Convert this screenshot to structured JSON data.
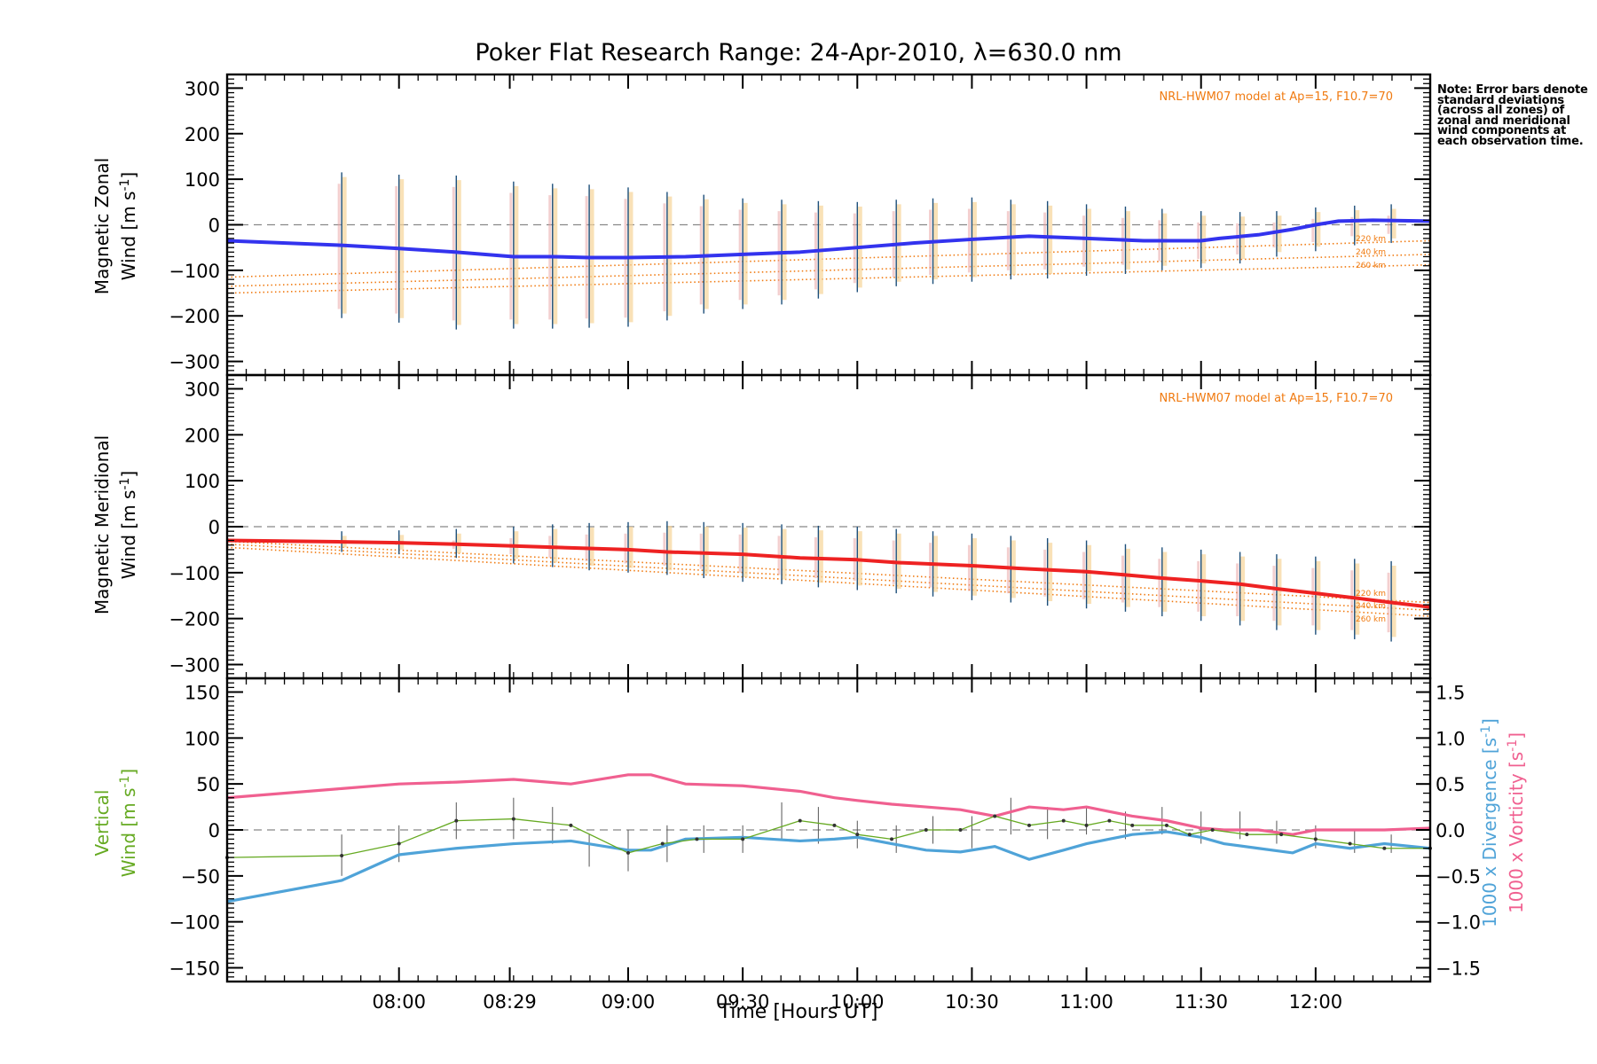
{
  "title": "Poker Flat Research Range: 24-Apr-2010, λ=630.0 nm",
  "note": "Note: Error bars denote standard deviations (across all zones) of zonal and meridional wind components at each observation time.",
  "x_axis": {
    "label": "Time [Hours UT]",
    "ticks": [
      "08:00",
      "08:29",
      "09:00",
      "09:30",
      "10:00",
      "10:30",
      "11:00",
      "11:30",
      "12:00"
    ]
  },
  "colors": {
    "zonal": "#3333ee",
    "meridional": "#ee2222",
    "vertical": "#66aa22",
    "divergence": "#4fa3d8",
    "vorticity": "#f06090",
    "model": "#f07a10",
    "error_bar": "#1d4f7a",
    "error_yellow": "#f7d59a",
    "error_pink": "#e8a0a0",
    "grid_zero": "#888888"
  },
  "chart_data": [
    {
      "type": "line",
      "id": "zonal",
      "ylabel_line1": "Magnetic Zonal",
      "ylabel_line2": "Wind [m s",
      "ylabel_sup": "-1",
      "ylabel_end": "]",
      "ylim": [
        -330,
        330
      ],
      "yticks": [
        "300",
        "200",
        "100",
        "0",
        "−100",
        "−200",
        "−300"
      ],
      "model_label": "NRL-HWM07 model at Ap=15, F10.7=70",
      "model_tags": [
        "220 km",
        "240 km",
        "260 km"
      ],
      "model_lines": [
        {
          "name": "220 km",
          "x": [
            7.25,
            12.5
          ],
          "y": [
            -115,
            -35
          ]
        },
        {
          "name": "240 km",
          "x": [
            7.25,
            12.5
          ],
          "y": [
            -135,
            -65
          ]
        },
        {
          "name": "260 km",
          "x": [
            7.25,
            12.5
          ],
          "y": [
            -150,
            -88
          ]
        }
      ],
      "series": [
        {
          "name": "Magnetic Zonal Wind",
          "x": [
            7.25,
            7.75,
            8.0,
            8.25,
            8.5,
            8.67,
            8.83,
            9.0,
            9.25,
            9.5,
            9.75,
            10.0,
            10.25,
            10.5,
            10.75,
            11.0,
            11.25,
            11.5,
            11.58,
            11.75,
            11.9,
            12.0,
            12.1,
            12.25,
            12.5
          ],
          "y": [
            -35,
            -45,
            -52,
            -60,
            -70,
            -70,
            -72,
            -72,
            -70,
            -65,
            -60,
            -50,
            -40,
            -32,
            -25,
            -30,
            -35,
            -35,
            -30,
            -22,
            -10,
            0,
            8,
            10,
            8
          ]
        }
      ],
      "error_bars": {
        "x": [
          7.75,
          8.0,
          8.25,
          8.5,
          8.67,
          8.83,
          9.0,
          9.17,
          9.33,
          9.5,
          9.67,
          9.83,
          10.0,
          10.17,
          10.33,
          10.5,
          10.67,
          10.83,
          11.0,
          11.17,
          11.33,
          11.5,
          11.67,
          11.83,
          12.0,
          12.17,
          12.33
        ],
        "lo": [
          -205,
          -215,
          -230,
          -228,
          -228,
          -226,
          -224,
          -210,
          -195,
          -185,
          -175,
          -162,
          -148,
          -135,
          -130,
          -125,
          -120,
          -118,
          -112,
          -108,
          -100,
          -95,
          -85,
          -70,
          -58,
          -45,
          -40
        ],
        "hi": [
          115,
          110,
          108,
          95,
          90,
          88,
          82,
          72,
          66,
          58,
          55,
          52,
          50,
          55,
          58,
          60,
          55,
          52,
          45,
          40,
          35,
          30,
          28,
          30,
          38,
          42,
          45
        ]
      }
    },
    {
      "type": "line",
      "id": "meridional",
      "ylabel_line1": "Magnetic Meridional",
      "ylabel_line2": "Wind [m s",
      "ylabel_sup": "-1",
      "ylabel_end": "]",
      "ylim": [
        -330,
        330
      ],
      "yticks": [
        "300",
        "200",
        "100",
        "0",
        "−100",
        "−200",
        "−300"
      ],
      "model_label": "NRL-HWM07 model at Ap=15, F10.7=70",
      "model_tags": [
        "220 km",
        "240 km",
        "260 km"
      ],
      "model_lines": [
        {
          "name": "220 km",
          "x": [
            7.25,
            12.5
          ],
          "y": [
            -32,
            -165
          ]
        },
        {
          "name": "240 km",
          "x": [
            7.25,
            12.5
          ],
          "y": [
            -38,
            -182
          ]
        },
        {
          "name": "260 km",
          "x": [
            7.25,
            12.5
          ],
          "y": [
            -45,
            -195
          ]
        }
      ],
      "series": [
        {
          "name": "Magnetic Meridional Wind",
          "x": [
            7.25,
            7.75,
            8.0,
            8.25,
            8.5,
            8.75,
            9.0,
            9.17,
            9.5,
            9.75,
            10.0,
            10.17,
            10.5,
            10.75,
            11.0,
            11.17,
            11.33,
            11.5,
            11.67,
            11.83,
            12.0,
            12.17,
            12.33,
            12.5
          ],
          "y": [
            -30,
            -33,
            -35,
            -38,
            -42,
            -46,
            -50,
            -55,
            -60,
            -68,
            -72,
            -78,
            -85,
            -92,
            -98,
            -105,
            -112,
            -118,
            -125,
            -135,
            -145,
            -155,
            -165,
            -175
          ]
        }
      ],
      "error_bars": {
        "x": [
          7.75,
          8.0,
          8.25,
          8.5,
          8.67,
          8.83,
          9.0,
          9.17,
          9.33,
          9.5,
          9.67,
          9.83,
          10.0,
          10.17,
          10.33,
          10.5,
          10.67,
          10.83,
          11.0,
          11.17,
          11.33,
          11.5,
          11.67,
          11.83,
          12.0,
          12.17,
          12.33
        ],
        "lo": [
          -55,
          -60,
          -68,
          -80,
          -88,
          -95,
          -100,
          -105,
          -112,
          -120,
          -125,
          -132,
          -138,
          -145,
          -152,
          -160,
          -165,
          -172,
          -178,
          -185,
          -195,
          -205,
          -215,
          -225,
          -235,
          -245,
          -250
        ],
        "hi": [
          -10,
          -8,
          -5,
          0,
          5,
          8,
          10,
          12,
          10,
          8,
          5,
          2,
          0,
          -5,
          -10,
          -15,
          -20,
          -25,
          -30,
          -38,
          -45,
          -50,
          -55,
          -60,
          -65,
          -70,
          -75
        ]
      }
    },
    {
      "type": "line",
      "id": "vertical",
      "ylabel_line1": "Vertical",
      "ylabel_line2": "Wind [m s",
      "ylabel_sup": "-1",
      "ylabel_end": "]",
      "ylim": [
        -165,
        165
      ],
      "yticks": [
        "150",
        "100",
        "50",
        "0",
        "−50",
        "−100",
        "−150"
      ],
      "y2label_div": "1000 x Divergence [s",
      "y2label_vor": "1000 x Vorticity [s",
      "y2label_sup": "-1",
      "y2label_end": "]",
      "y2lim": [
        -1.65,
        1.65
      ],
      "y2ticks": [
        "1.5",
        "1.0",
        "0.5",
        "0.0",
        "−0.5",
        "−1.0",
        "−1.5"
      ],
      "series": [
        {
          "name": "Vertical Wind",
          "axis": "left",
          "x": [
            7.25,
            7.75,
            8.0,
            8.25,
            8.5,
            8.75,
            9.0,
            9.15,
            9.3,
            9.5,
            9.75,
            9.9,
            10.0,
            10.15,
            10.3,
            10.45,
            10.6,
            10.75,
            10.9,
            11.0,
            11.1,
            11.2,
            11.35,
            11.45,
            11.55,
            11.7,
            11.85,
            12.0,
            12.15,
            12.3,
            12.5
          ],
          "y": [
            -30,
            -28,
            -15,
            10,
            12,
            5,
            -25,
            -15,
            -10,
            -10,
            10,
            5,
            -5,
            -10,
            0,
            0,
            15,
            5,
            10,
            5,
            10,
            5,
            5,
            -5,
            0,
            -5,
            -5,
            -10,
            -15,
            -20,
            -20
          ]
        },
        {
          "name": "1000 x Divergence",
          "axis": "right",
          "x": [
            7.25,
            7.75,
            8.0,
            8.25,
            8.5,
            8.75,
            9.0,
            9.1,
            9.25,
            9.5,
            9.75,
            9.9,
            10.0,
            10.15,
            10.3,
            10.45,
            10.6,
            10.75,
            10.9,
            11.0,
            11.1,
            11.2,
            11.35,
            11.5,
            11.6,
            11.75,
            11.9,
            12.0,
            12.15,
            12.3,
            12.5
          ],
          "y": [
            -0.78,
            -0.55,
            -0.27,
            -0.2,
            -0.15,
            -0.12,
            -0.22,
            -0.22,
            -0.1,
            -0.08,
            -0.12,
            -0.1,
            -0.08,
            -0.15,
            -0.22,
            -0.24,
            -0.18,
            -0.32,
            -0.22,
            -0.15,
            -0.1,
            -0.05,
            -0.02,
            -0.08,
            -0.15,
            -0.2,
            -0.25,
            -0.15,
            -0.2,
            -0.15,
            -0.2
          ]
        },
        {
          "name": "1000 x Vorticity",
          "axis": "right",
          "x": [
            7.25,
            7.75,
            8.0,
            8.25,
            8.5,
            8.75,
            9.0,
            9.1,
            9.25,
            9.5,
            9.75,
            9.9,
            10.0,
            10.15,
            10.3,
            10.45,
            10.6,
            10.75,
            10.9,
            11.0,
            11.1,
            11.2,
            11.35,
            11.5,
            11.6,
            11.75,
            11.9,
            12.0,
            12.15,
            12.3,
            12.5
          ],
          "y": [
            0.35,
            0.45,
            0.5,
            0.52,
            0.55,
            0.5,
            0.6,
            0.6,
            0.5,
            0.48,
            0.42,
            0.35,
            0.32,
            0.28,
            0.25,
            0.22,
            0.15,
            0.25,
            0.22,
            0.25,
            0.2,
            0.15,
            0.1,
            0.02,
            0.0,
            0.0,
            -0.05,
            0.0,
            0.0,
            0.0,
            0.02
          ]
        }
      ],
      "error_bars": {
        "x": [
          7.75,
          8.0,
          8.25,
          8.5,
          8.67,
          8.83,
          9.0,
          9.17,
          9.33,
          9.5,
          9.67,
          9.83,
          10.0,
          10.17,
          10.33,
          10.5,
          10.67,
          10.83,
          11.0,
          11.17,
          11.33,
          11.5,
          11.67,
          11.83,
          12.0,
          12.17,
          12.33
        ],
        "lo": [
          -50,
          -35,
          -10,
          -10,
          -15,
          -40,
          -45,
          -35,
          -25,
          -25,
          -10,
          -15,
          -20,
          -25,
          -15,
          -20,
          -5,
          -10,
          -5,
          -10,
          -5,
          -15,
          -10,
          -15,
          -20,
          -25,
          -25
        ],
        "hi": [
          -5,
          5,
          30,
          35,
          25,
          -5,
          0,
          5,
          5,
          5,
          30,
          25,
          10,
          5,
          15,
          15,
          35,
          25,
          25,
          20,
          25,
          20,
          20,
          10,
          5,
          0,
          -5
        ]
      }
    }
  ]
}
